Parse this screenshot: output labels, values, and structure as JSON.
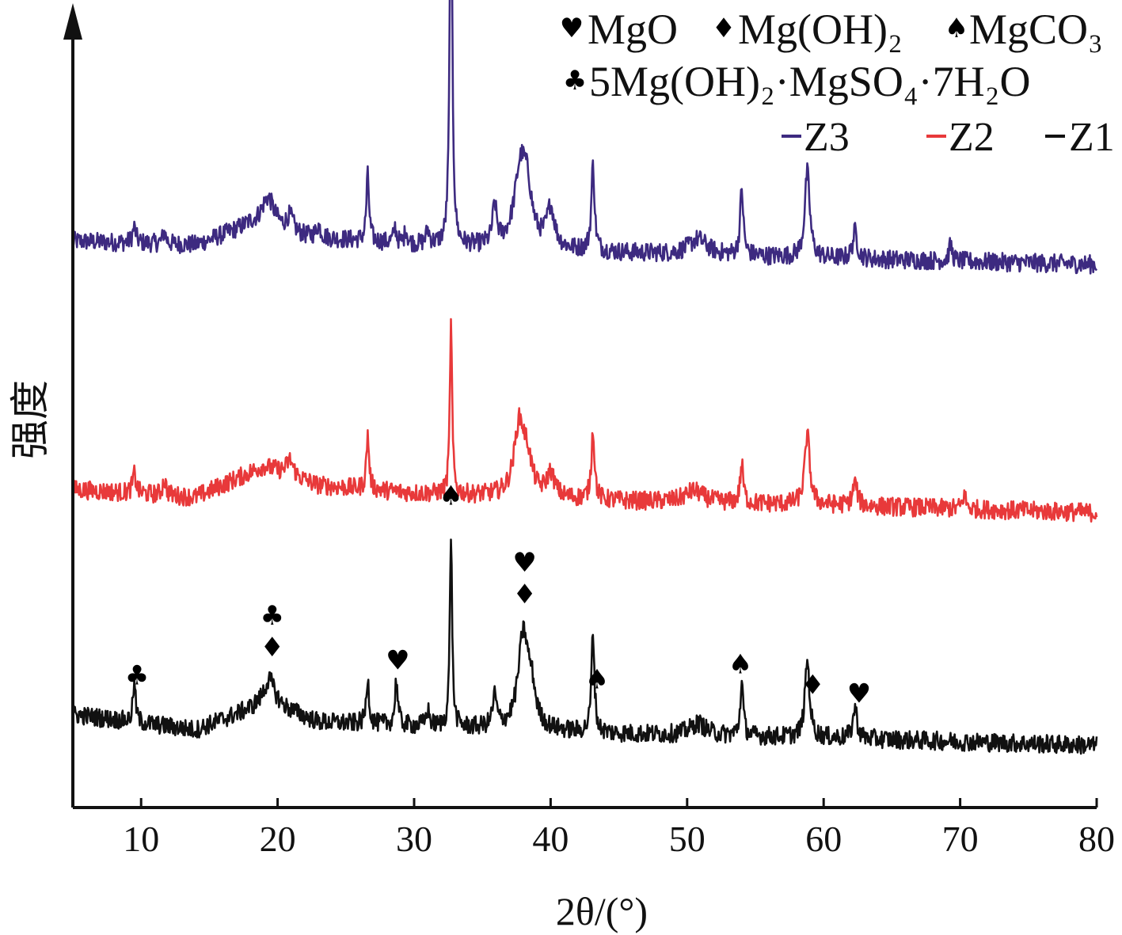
{
  "chart_data": {
    "type": "line",
    "xlabel": "2θ/(°)",
    "ylabel": "强度",
    "xlim": [
      5,
      80
    ],
    "x_ticks": [
      10,
      20,
      30,
      40,
      50,
      60,
      70,
      80
    ],
    "grid": false,
    "legend_position": "top-right",
    "phase_legend": [
      {
        "symbol": "heart",
        "glyph": "♥",
        "label": "MgO"
      },
      {
        "symbol": "diamond",
        "glyph": "♦",
        "label": "Mg(OH)₂"
      },
      {
        "symbol": "spade",
        "glyph": "♠",
        "label": "MgCO₃"
      },
      {
        "symbol": "club",
        "glyph": "♣",
        "label": "5Mg(OH)₂·MgSO₄·7H₂O"
      }
    ],
    "series": [
      {
        "name": "Z3",
        "color": "#3d2a80",
        "offset": 0.7,
        "noise": 0.012,
        "baseline": [
          [
            5,
            0.03
          ],
          [
            14,
            0.025
          ],
          [
            18,
            0.05
          ],
          [
            22,
            0.035
          ],
          [
            30,
            0.025
          ],
          [
            45,
            0.015
          ],
          [
            60,
            0.008
          ],
          [
            80,
            0.0
          ]
        ],
        "peaks": [
          [
            9.5,
            0.02,
            0.15
          ],
          [
            11.7,
            0.015,
            0.15
          ],
          [
            19.3,
            0.04,
            0.6
          ],
          [
            20.9,
            0.02,
            0.3
          ],
          [
            23,
            0.015,
            0.2
          ],
          [
            26.6,
            0.085,
            0.12
          ],
          [
            28.6,
            0.02,
            0.12
          ],
          [
            29.4,
            0.018,
            0.12
          ],
          [
            31,
            0.018,
            0.15
          ],
          [
            32.7,
            0.52,
            0.11
          ],
          [
            35.9,
            0.05,
            0.18
          ],
          [
            37.8,
            0.1,
            0.55
          ],
          [
            38.3,
            0.05,
            0.4
          ],
          [
            40,
            0.05,
            0.35
          ],
          [
            43.1,
            0.11,
            0.14
          ],
          [
            50.8,
            0.02,
            0.8
          ],
          [
            54,
            0.085,
            0.14
          ],
          [
            58.8,
            0.11,
            0.22
          ],
          [
            62.3,
            0.035,
            0.2
          ],
          [
            69.3,
            0.02,
            0.15
          ]
        ]
      },
      {
        "name": "Z2",
        "color": "#e8393a",
        "offset": 0.38,
        "noise": 0.012,
        "baseline": [
          [
            5,
            0.03
          ],
          [
            14,
            0.02
          ],
          [
            19,
            0.06
          ],
          [
            23,
            0.035
          ],
          [
            30,
            0.025
          ],
          [
            45,
            0.015
          ],
          [
            60,
            0.01
          ],
          [
            80,
            0.0
          ]
        ],
        "peaks": [
          [
            9.5,
            0.025,
            0.15
          ],
          [
            11.7,
            0.02,
            0.15
          ],
          [
            20.9,
            0.02,
            0.3
          ],
          [
            26.6,
            0.07,
            0.12
          ],
          [
            32.7,
            0.22,
            0.1
          ],
          [
            37.7,
            0.09,
            0.45
          ],
          [
            38.3,
            0.04,
            0.4
          ],
          [
            40,
            0.03,
            0.35
          ],
          [
            43.1,
            0.09,
            0.14
          ],
          [
            50.5,
            0.015,
            0.8
          ],
          [
            54,
            0.05,
            0.14
          ],
          [
            58.8,
            0.09,
            0.22
          ],
          [
            62.3,
            0.03,
            0.2
          ],
          [
            70.3,
            0.018,
            0.15
          ]
        ]
      },
      {
        "name": "Z1",
        "color": "#111111",
        "offset": 0.08,
        "noise": 0.012,
        "baseline": [
          [
            5,
            0.04
          ],
          [
            14,
            0.02
          ],
          [
            19.3,
            0.055
          ],
          [
            23,
            0.03
          ],
          [
            30,
            0.025
          ],
          [
            45,
            0.015
          ],
          [
            60,
            0.01
          ],
          [
            80,
            0.0
          ]
        ],
        "peaks": [
          [
            9.5,
            0.05,
            0.12
          ],
          [
            19.4,
            0.03,
            0.5
          ],
          [
            26.6,
            0.06,
            0.12
          ],
          [
            28.7,
            0.06,
            0.12
          ],
          [
            31,
            0.02,
            0.15
          ],
          [
            32.7,
            0.25,
            0.1
          ],
          [
            35.9,
            0.04,
            0.18
          ],
          [
            38,
            0.12,
            0.45
          ],
          [
            38.6,
            0.04,
            0.35
          ],
          [
            43.1,
            0.13,
            0.13
          ],
          [
            50.8,
            0.015,
            0.7
          ],
          [
            54,
            0.07,
            0.13
          ],
          [
            58.8,
            0.1,
            0.2
          ],
          [
            62.3,
            0.04,
            0.18
          ]
        ]
      }
    ],
    "annotations": [
      {
        "x": 9.7,
        "symbols": [
          "club"
        ],
        "glyphs": [
          "♣"
        ]
      },
      {
        "x": 19.6,
        "symbols": [
          "diamond",
          "club"
        ],
        "glyphs": [
          "♦",
          "♣"
        ]
      },
      {
        "x": 28.8,
        "symbols": [
          "heart"
        ],
        "glyphs": [
          "♥"
        ]
      },
      {
        "x": 32.7,
        "symbols": [
          "spade"
        ],
        "glyphs": [
          "♠"
        ]
      },
      {
        "x": 38.1,
        "symbols": [
          "diamond",
          "heart"
        ],
        "glyphs": [
          "♦",
          "♥"
        ]
      },
      {
        "x": 43.4,
        "symbols": [
          "spade"
        ],
        "glyphs": [
          "♠"
        ]
      },
      {
        "x": 53.9,
        "symbols": [
          "spade"
        ],
        "glyphs": [
          "♠"
        ]
      },
      {
        "x": 59.2,
        "symbols": [
          "diamond"
        ],
        "glyphs": [
          "♦"
        ]
      },
      {
        "x": 62.6,
        "symbols": [
          "heart"
        ],
        "glyphs": [
          "♥"
        ]
      }
    ]
  }
}
